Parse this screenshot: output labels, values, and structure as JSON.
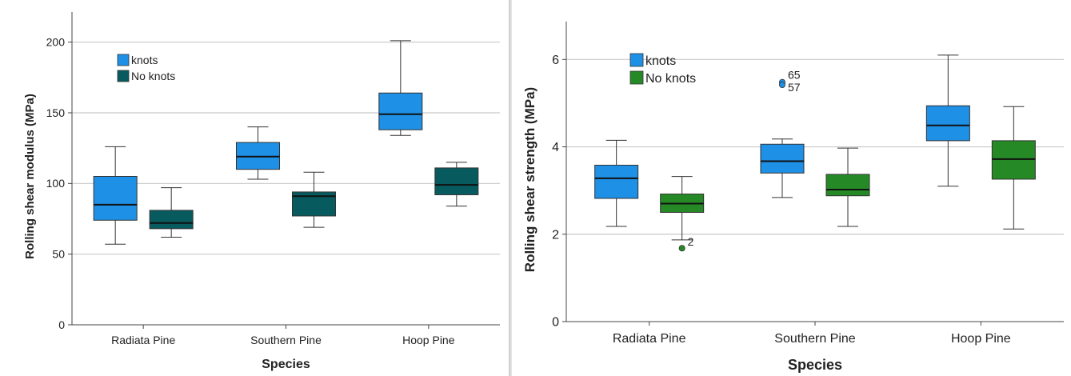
{
  "chart_data": [
    {
      "type": "box",
      "xlabel": "Species",
      "ylabel": "Rolling shear modulus (MPa)",
      "categories": [
        "Radiata Pine",
        "Southern Pine",
        "Hoop Pine"
      ],
      "ylim": [
        0,
        210
      ],
      "yticks": [
        0,
        50,
        100,
        150,
        200
      ],
      "grid": "horizontal",
      "legend_position": "top-left",
      "series": [
        {
          "name": "knots",
          "color": "#1e90e6",
          "boxes": [
            {
              "min": 57,
              "q1": 74,
              "median": 85,
              "q3": 105,
              "max": 126
            },
            {
              "min": 103,
              "q1": 110,
              "median": 119,
              "q3": 129,
              "max": 140
            },
            {
              "min": 134,
              "q1": 138,
              "median": 149,
              "q3": 164,
              "max": 201
            }
          ],
          "outliers": []
        },
        {
          "name": "No knots",
          "color": "#075b5e",
          "boxes": [
            {
              "min": 62,
              "q1": 68,
              "median": 72,
              "q3": 81,
              "max": 97
            },
            {
              "min": 69,
              "q1": 77,
              "median": 91,
              "q3": 94,
              "max": 108
            },
            {
              "min": 84,
              "q1": 92,
              "median": 99,
              "q3": 111,
              "max": 115
            }
          ],
          "outliers": []
        }
      ]
    },
    {
      "type": "box",
      "xlabel": "Species",
      "ylabel": "Rolling shear strength (MPa)",
      "categories": [
        "Radiata Pine",
        "Southern Pine",
        "Hoop Pine"
      ],
      "ylim": [
        0,
        6.5
      ],
      "yticks": [
        0,
        2,
        4,
        6
      ],
      "grid": "horizontal",
      "legend_position": "top-left",
      "series": [
        {
          "name": "knots",
          "color": "#1e90e6",
          "boxes": [
            {
              "min": 2.18,
              "q1": 2.82,
              "median": 3.28,
              "q3": 3.58,
              "max": 4.15
            },
            {
              "min": 2.84,
              "q1": 3.4,
              "median": 3.67,
              "q3": 4.06,
              "max": 4.18
            },
            {
              "min": 3.1,
              "q1": 4.14,
              "median": 4.49,
              "q3": 4.94,
              "max": 6.1
            }
          ],
          "outliers": [
            {
              "category": "Southern Pine",
              "value": 5.48,
              "label": "65"
            },
            {
              "category": "Southern Pine",
              "value": 5.42,
              "label": "57"
            }
          ]
        },
        {
          "name": "No knots",
          "color": "#258a26",
          "boxes": [
            {
              "min": 1.87,
              "q1": 2.5,
              "median": 2.7,
              "q3": 2.92,
              "max": 3.32
            },
            {
              "min": 2.18,
              "q1": 2.88,
              "median": 3.02,
              "q3": 3.37,
              "max": 3.97
            },
            {
              "min": 2.12,
              "q1": 3.26,
              "median": 3.72,
              "q3": 4.14,
              "max": 4.92
            }
          ],
          "outliers": [
            {
              "category": "Radiata Pine",
              "value": 1.68,
              "label": "2"
            }
          ]
        }
      ]
    }
  ]
}
